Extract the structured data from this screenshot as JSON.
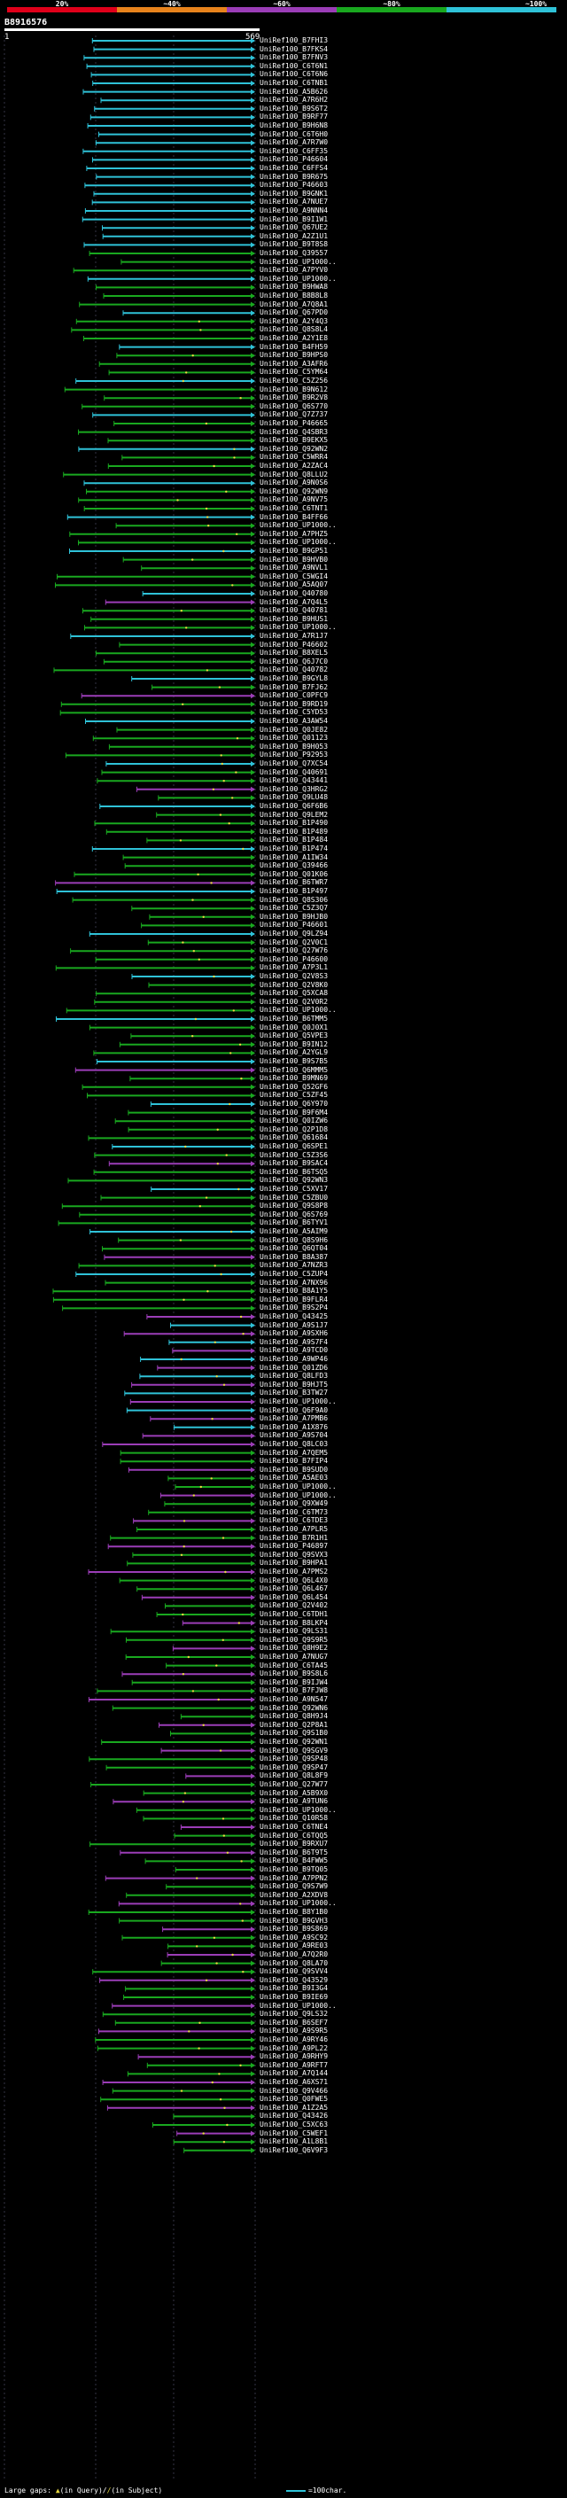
{
  "header": {
    "query_id": "B8916576",
    "coord_start": "1",
    "coord_end": "569",
    "legend_labels": [
      "20%",
      "~40%",
      "~60%",
      "~80%",
      "~100%"
    ],
    "legend_colors": [
      "#e0001a",
      "#e8831c",
      "#9b3db7",
      "#19a81f",
      "#2fc2d8"
    ]
  },
  "footer": {
    "large_gaps_label": "Large gaps:",
    "in_query_label": "(in Query)/",
    "in_subject_label": "(in Subject)",
    "scale_label": "=100char."
  },
  "hits": [
    "UniRef100_B7FHI3",
    "UniRef100_B7FKS4",
    "UniRef100_B7FNV3",
    "UniRef100_C6T6N1",
    "UniRef100_C6T6N6",
    "UniRef100_C6TNB1",
    "UniRef100_A5B626",
    "UniRef100_A7R6H2",
    "UniRef100_B9S6T2",
    "UniRef100_B9RF77",
    "UniRef100_B9H6N8",
    "UniRef100_C6T6H0",
    "UniRef100_A7R7W0",
    "UniRef100_C6FF35",
    "UniRef100_P46604",
    "UniRef100_C6FFS4",
    "UniRef100_B9R675",
    "UniRef100_P46603",
    "UniRef100_B9GNK1",
    "UniRef100_A7NUE7",
    "UniRef100_A9NNN4",
    "UniRef100_B9I1W1",
    "UniRef100_Q67UE2",
    "UniRef100_A2Z1U1",
    "UniRef100_B9T8S8",
    "UniRef100_Q39557",
    "UniRef100_UP1000..",
    "UniRef100_A7PYV0",
    "UniRef100_UP1000..",
    "UniRef100_B9HWA8",
    "UniRef100_B8B8L8",
    "UniRef100_A7Q8A1",
    "UniRef100_Q67PD0",
    "UniRef100_A2Y4Q3",
    "UniRef100_Q8S8L4",
    "UniRef100_A2Y1E8",
    "UniRef100_B4FH59",
    "UniRef100_B9HPS0",
    "UniRef100_A3AFR6",
    "UniRef100_C5YM64",
    "UniRef100_C5Z256",
    "UniRef100_B9N612",
    "UniRef100_B9R2V8",
    "UniRef100_Q6S770",
    "UniRef100_Q7Z737",
    "UniRef100_P46665",
    "UniRef100_Q4SBR3",
    "UniRef100_B9EKX5",
    "UniRef100_Q92WN2",
    "UniRef100_C5WRR4",
    "UniRef100_A2ZAC4",
    "UniRef100_Q8LLU2",
    "UniRef100_A9N0S6",
    "UniRef100_Q92WN9",
    "UniRef100_A9NV75",
    "UniRef100_C6TNT1",
    "UniRef100_B4FF66",
    "UniRef100_UP1000..",
    "UniRef100_A7PHZ5",
    "UniRef100_UP1000..",
    "UniRef100_B9GP51",
    "UniRef100_B9HVB0",
    "UniRef100_A9NVL1",
    "UniRef100_C5WGI4",
    "UniRef100_A5AQ07",
    "UniRef100_Q40780",
    "UniRef100_A7Q4L5",
    "UniRef100_Q40781",
    "UniRef100_B9HUS1",
    "UniRef100_UP1000..",
    "UniRef100_A7R1J7",
    "UniRef100_P46602",
    "UniRef100_B8XEL5",
    "UniRef100_Q6J7C0",
    "UniRef100_Q40782",
    "UniRef100_B9GYL8",
    "UniRef100_B7FJ62",
    "UniRef100_C0PFC9",
    "UniRef100_B9RD19",
    "UniRef100_C5YD53",
    "UniRef100_A3AW54",
    "UniRef100_Q0JE82",
    "UniRef100_Q01123",
    "UniRef100_B9H053",
    "UniRef100_P92953",
    "UniRef100_Q7XC54",
    "UniRef100_Q40691",
    "UniRef100_Q43441",
    "UniRef100_Q3HRG2",
    "UniRef100_Q9LU48",
    "UniRef100_Q6F6B6",
    "UniRef100_Q9LEM2",
    "UniRef100_B1P490",
    "UniRef100_B1P489",
    "UniRef100_B1P484",
    "UniRef100_B1P474",
    "UniRef100_A1IW34",
    "UniRef100_Q39466",
    "UniRef100_Q01K06",
    "UniRef100_B6TWR7",
    "UniRef100_B1P497",
    "UniRef100_Q8S306",
    "UniRef100_C5Z3Q7",
    "UniRef100_B9HJB0",
    "UniRef100_P46601",
    "UniRef100_Q9LZ94",
    "UniRef100_Q2V0C1",
    "UniRef100_Q27W76",
    "UniRef100_P46600",
    "UniRef100_A7P3L1",
    "UniRef100_Q2V8S3",
    "UniRef100_Q2V8K0",
    "UniRef100_Q5XCA8",
    "UniRef100_Q2V0R2",
    "UniRef100_UP1000..",
    "UniRef100_B6TMM5",
    "UniRef100_Q0J0X1",
    "UniRef100_Q5VPE3",
    "UniRef100_B9IN12",
    "UniRef100_A2YGL9",
    "UniRef100_B9S7B5",
    "UniRef100_Q6MMM5",
    "UniRef100_B9MN69",
    "UniRef100_Q52GF6",
    "UniRef100_C5ZF45",
    "UniRef100_Q6Y970",
    "UniRef100_B9F6M4",
    "UniRef100_Q0IZW6",
    "UniRef100_Q2P1D8",
    "UniRef100_Q61684",
    "UniRef100_Q6SPE1",
    "UniRef100_C5Z3S6",
    "UniRef100_B9SAC4",
    "UniRef100_B6TSQ5",
    "UniRef100_Q92WN3",
    "UniRef100_C5XV17",
    "UniRef100_C5ZBU0",
    "UniRef100_Q9S8P8",
    "UniRef100_Q6S769",
    "UniRef100_B6TYV1",
    "UniRef100_A5AIM9",
    "UniRef100_Q8S9H6",
    "UniRef100_Q6QT04",
    "UniRef100_B8A387",
    "UniRef100_A7NZR3",
    "UniRef100_C5ZUP4",
    "UniRef100_A7NX96",
    "UniRef100_B8A1Y5",
    "UniRef100_B9FLR4",
    "UniRef100_B9S2P4",
    "UniRef100_Q43425",
    "UniRef100_A9S1J7",
    "UniRef100_A9SXH6",
    "UniRef100_A9S7F4",
    "UniRef100_A9TCD0",
    "UniRef100_A9WP46",
    "UniRef100_Q01ZD6",
    "UniRef100_Q8LFD3",
    "UniRef100_B9HJT5",
    "UniRef100_B3TW27",
    "UniRef100_UP1000..",
    "UniRef100_Q6F9A0",
    "UniRef100_A7PMB6",
    "UniRef100_A1X876",
    "UniRef100_A9S704",
    "UniRef100_Q8LC03",
    "UniRef100_A7QEM5",
    "UniRef100_B7FIP4",
    "UniRef100_B9SUD0",
    "UniRef100_A5AE03",
    "UniRef100_UP1000..",
    "UniRef100_UP1000..",
    "UniRef100_Q9XW49",
    "UniRef100_C6TM73",
    "UniRef100_C6TDE3",
    "UniRef100_A7PLR5",
    "UniRef100_B7R1H1",
    "UniRef100_P46897",
    "UniRef100_Q9SVX3",
    "UniRef100_B9HPA1",
    "UniRef100_A7PMS2",
    "UniRef100_Q6L4X0",
    "UniRef100_Q6L467",
    "UniRef100_Q6L454",
    "UniRef100_Q2V402",
    "UniRef100_C6TDH1",
    "UniRef100_B8LKP4",
    "UniRef100_Q9LS31",
    "UniRef100_Q9S9R5",
    "UniRef100_Q8H9E2",
    "UniRef100_A7NUG7",
    "UniRef100_C6TA45",
    "UniRef100_B9S8L6",
    "UniRef100_B9IJW4",
    "UniRef100_B7FJW8",
    "UniRef100_A9N547",
    "UniRef100_Q92WN6",
    "UniRef100_Q8H9J4",
    "UniRef100_Q2P8A1",
    "UniRef100_Q9S1B0",
    "UniRef100_Q92WN1",
    "UniRef100_Q9SGV9",
    "UniRef100_Q9SP48",
    "UniRef100_Q9SP47",
    "UniRef100_Q8L8F9",
    "UniRef100_Q27W77",
    "UniRef100_A5B9X0",
    "UniRef100_A9TUN6",
    "UniRef100_UP1000..",
    "UniRef100_Q10R58",
    "UniRef100_C6TNE4",
    "UniRef100_C6TQQ5",
    "UniRef100_B9RXU7",
    "UniRef100_B6T9T5",
    "UniRef100_B4FWW5",
    "UniRef100_B9TQ05",
    "UniRef100_A7PPN2",
    "UniRef100_Q9S7W9",
    "UniRef100_A2XDV8",
    "UniRef100_UP1000..",
    "UniRef100_B8Y1B0",
    "UniRef100_B9GVH3",
    "UniRef100_B9S869",
    "UniRef100_A9SC92",
    "UniRef100_A9RE03",
    "UniRef100_A7Q2R0",
    "UniRef100_Q8LA70",
    "UniRef100_Q9SVV4",
    "UniRef100_Q43529",
    "UniRef100_B9I3G4",
    "UniRef100_B9IE69",
    "UniRef100_UP1000..",
    "UniRef100_Q9LS32",
    "UniRef100_B6SEF7",
    "UniRef100_A9S9R5",
    "UniRef100_A9RY46",
    "UniRef100_A9PL22",
    "UniRef100_A9RHY9",
    "UniRef100_A9RFT7",
    "UniRef100_A7Q144",
    "UniRef100_A6XS71",
    "UniRef100_Q9V466",
    "UniRef100_Q0FWE5",
    "UniRef100_A1Z2A5",
    "UniRef100_Q43426",
    "UniRef100_C5XC63",
    "UniRef100_C5WEF1",
    "UniRef100_A1L8B1",
    "UniRef100_Q6V9F3"
  ]
}
